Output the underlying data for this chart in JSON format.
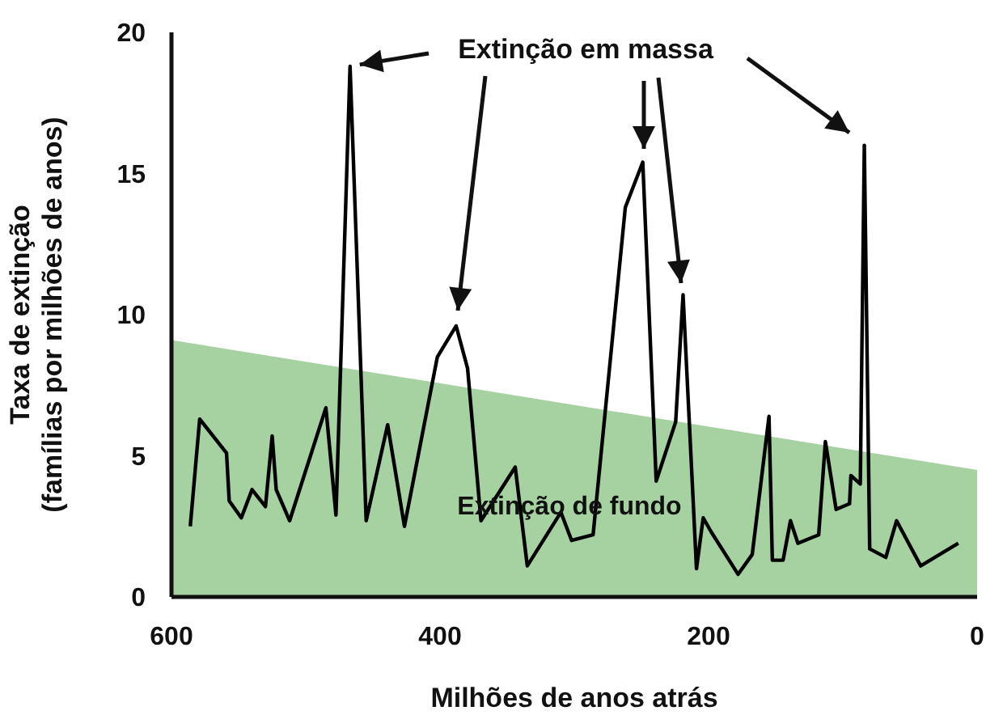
{
  "chart_data": {
    "type": "line",
    "xlabel": "Milhões de anos atrás",
    "ylabel": "Taxa de extinção (famílias por milhões de anos)",
    "xlim": [
      600,
      0
    ],
    "xticks": [
      600,
      400,
      200,
      0
    ],
    "ylim": [
      0,
      20
    ],
    "yticks": [
      0,
      5,
      10,
      15,
      20
    ],
    "grid": false,
    "marker": "none",
    "line_style": "solid",
    "annotations": [
      {
        "text": "Extinção em massa",
        "x": 467,
        "y": 18.8
      },
      "Extinção de fundo"
    ],
    "series": [
      {
        "type": "area",
        "color": "#a6d1a0",
        "x": [
          600,
          0
        ],
        "values": [
          9.1,
          4.5
        ]
      },
      {
        "color": "#000000",
        "x": [
          586,
          579,
          559,
          557,
          548,
          540,
          530,
          525,
          522,
          512,
          485,
          477.5,
          467,
          455,
          439,
          426.5,
          402,
          388,
          379.5,
          369.5,
          344,
          335,
          310,
          302,
          286,
          262,
          249,
          239,
          224.5,
          219,
          209,
          204,
          198,
          178,
          167.5,
          155,
          152.5,
          144.5,
          139,
          133.5,
          118,
          113,
          105,
          95,
          94,
          87,
          84,
          80,
          68,
          60,
          42,
          14
        ],
        "values": [
          2.5,
          6.3,
          5.1,
          3.4,
          2.8,
          3.8,
          3.2,
          5.7,
          3.8,
          2.7,
          6.7,
          2.9,
          18.8,
          2.7,
          6.1,
          2.5,
          8.5,
          9.6,
          8.1,
          2.7,
          4.6,
          1.1,
          3,
          2,
          2.2,
          13.8,
          15.4,
          4.1,
          6.2,
          10.7,
          1,
          2.8,
          2.3,
          0.8,
          1.5,
          6.4,
          1.3,
          1.3,
          2.7,
          1.9,
          2.2,
          5.5,
          3.1,
          3.3,
          4.3,
          4,
          16,
          1.7,
          1.4,
          2.7,
          1.1,
          1.9
        ]
      }
    ]
  }
}
